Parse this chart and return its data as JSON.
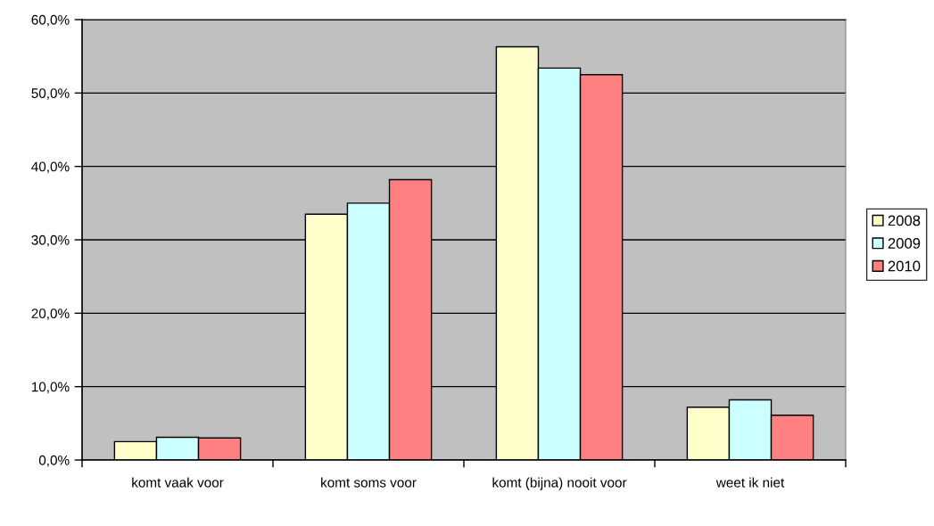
{
  "chart_data": {
    "type": "bar",
    "categories": [
      "komt vaak voor",
      "komt soms voor",
      "komt (bijna) nooit voor",
      "weet ik niet"
    ],
    "series": [
      {
        "name": "2008",
        "color": "#ffffcc",
        "values": [
          2.5,
          33.5,
          56.3,
          7.2
        ]
      },
      {
        "name": "2009",
        "color": "#ccffff",
        "values": [
          3.1,
          35.0,
          53.4,
          8.2
        ]
      },
      {
        "name": "2010",
        "color": "#ff8080",
        "values": [
          3.0,
          38.2,
          52.5,
          6.1
        ]
      }
    ],
    "ylim": [
      0,
      60
    ],
    "yticks": [
      {
        "value": 0,
        "label": "0,0%"
      },
      {
        "value": 10,
        "label": "10,0%"
      },
      {
        "value": 20,
        "label": "20,0%"
      },
      {
        "value": 30,
        "label": "30,0%"
      },
      {
        "value": 40,
        "label": "40,0%"
      },
      {
        "value": 50,
        "label": "50,0%"
      },
      {
        "value": 60,
        "label": "60,0%"
      }
    ],
    "grid": "y",
    "legend": "right"
  }
}
